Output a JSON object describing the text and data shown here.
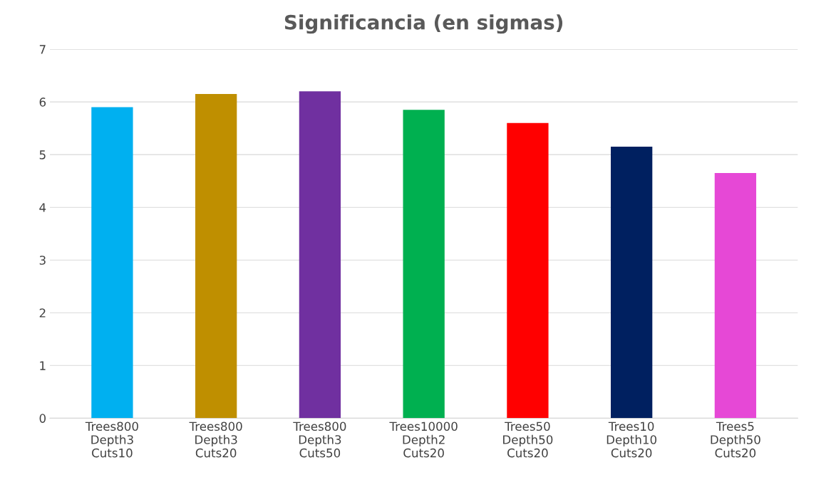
{
  "chart_data": {
    "type": "bar",
    "title": "Significancia (en sigmas)",
    "categories": [
      "Trees800\nDepth3\nCuts10",
      "Trees800\nDepth3\nCuts20",
      "Trees800\nDepth3\nCuts50",
      "Trees10000\nDepth2\nCuts20",
      "Trees50\nDepth50\nCuts20",
      "Trees10\nDepth10\nCuts20",
      "Trees5\nDepth50\nCuts20"
    ],
    "values": [
      5.9,
      6.15,
      6.2,
      5.85,
      5.6,
      5.15,
      4.65
    ],
    "colors": [
      "#00b0f0",
      "#bf8f00",
      "#7030a0",
      "#00b050",
      "#ff0000",
      "#002060",
      "#e648d6"
    ],
    "ylim": [
      0,
      7
    ],
    "yticks": [
      0,
      1,
      2,
      3,
      4,
      5,
      6,
      7
    ],
    "grid": "y"
  }
}
